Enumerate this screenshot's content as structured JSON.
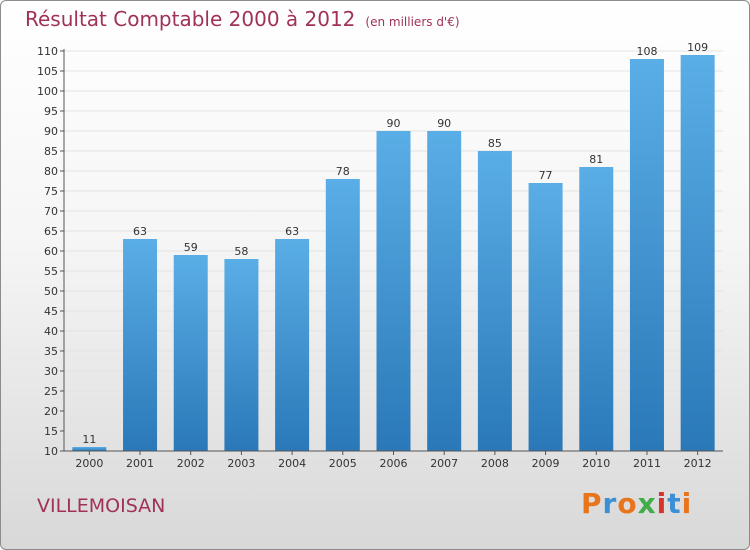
{
  "header": {
    "title": "Résultat Comptable 2000 à 2012",
    "subtitle": "(en milliers d'€)"
  },
  "location": "VILLEMOISAN",
  "brand": {
    "letters": [
      "P",
      "r",
      "o",
      "x",
      "i",
      "t",
      "i"
    ],
    "colors": [
      "#e8741c",
      "#3b8fd6",
      "#e8741c",
      "#3fae49",
      "#d8342e",
      "#3b8fd6",
      "#e8741c"
    ]
  },
  "colors": {
    "title": "#a0325a",
    "bar_light": "#5aaee6",
    "bar_dark": "#2a78b8",
    "grid": "#e3e3e3",
    "axis": "#555555"
  },
  "chart_data": {
    "type": "bar",
    "categories": [
      "2000",
      "2001",
      "2002",
      "2003",
      "2004",
      "2005",
      "2006",
      "2007",
      "2008",
      "2009",
      "2010",
      "2011",
      "2012"
    ],
    "values": [
      11,
      63,
      59,
      58,
      63,
      78,
      90,
      90,
      85,
      77,
      81,
      108,
      109
    ],
    "ylim": [
      10,
      110
    ],
    "yticks": [
      10,
      15,
      20,
      25,
      30,
      35,
      40,
      45,
      50,
      55,
      60,
      65,
      70,
      75,
      80,
      85,
      90,
      95,
      100,
      105,
      110
    ],
    "data_labels": true,
    "grid": true
  }
}
